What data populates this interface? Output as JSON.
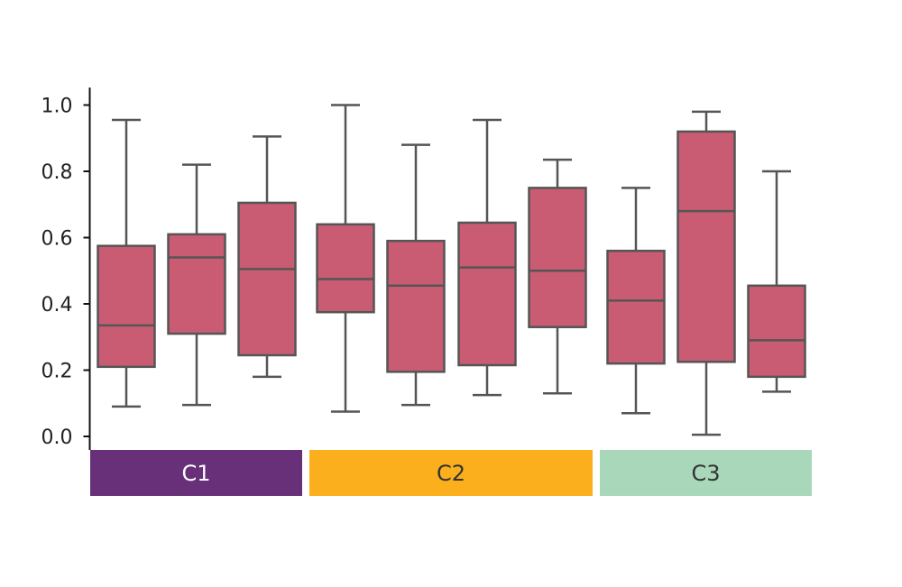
{
  "chart_data": {
    "type": "box",
    "ylim": [
      0,
      1.05
    ],
    "yticks": [
      "0.0",
      "0.2",
      "0.4",
      "0.6",
      "0.8",
      "1.0"
    ],
    "box_color": "#c95c73",
    "line_color": "#555555",
    "groups": [
      {
        "label": "C1",
        "color": "#673079",
        "text_color": "#ffffff",
        "boxes": [
          {
            "min": 0.09,
            "q1": 0.21,
            "median": 0.335,
            "q3": 0.575,
            "max": 0.955
          },
          {
            "min": 0.095,
            "q1": 0.31,
            "median": 0.54,
            "q3": 0.61,
            "max": 0.82
          },
          {
            "min": 0.18,
            "q1": 0.245,
            "median": 0.505,
            "q3": 0.705,
            "max": 0.905
          }
        ]
      },
      {
        "label": "C2",
        "color": "#fcaf1c",
        "text_color": "#333333",
        "boxes": [
          {
            "min": 0.075,
            "q1": 0.375,
            "median": 0.475,
            "q3": 0.64,
            "max": 1.0
          },
          {
            "min": 0.095,
            "q1": 0.195,
            "median": 0.455,
            "q3": 0.59,
            "max": 0.88
          },
          {
            "min": 0.125,
            "q1": 0.215,
            "median": 0.51,
            "q3": 0.645,
            "max": 0.955
          },
          {
            "min": 0.13,
            "q1": 0.33,
            "median": 0.5,
            "q3": 0.75,
            "max": 0.835
          }
        ]
      },
      {
        "label": "C3",
        "color": "#a8d8b9",
        "text_color": "#333333",
        "boxes": [
          {
            "min": 0.07,
            "q1": 0.22,
            "median": 0.41,
            "q3": 0.56,
            "max": 0.75
          },
          {
            "min": 0.005,
            "q1": 0.225,
            "median": 0.68,
            "q3": 0.92,
            "max": 0.98
          },
          {
            "min": 0.135,
            "q1": 0.18,
            "median": 0.29,
            "q3": 0.455,
            "max": 0.8
          }
        ]
      }
    ]
  }
}
